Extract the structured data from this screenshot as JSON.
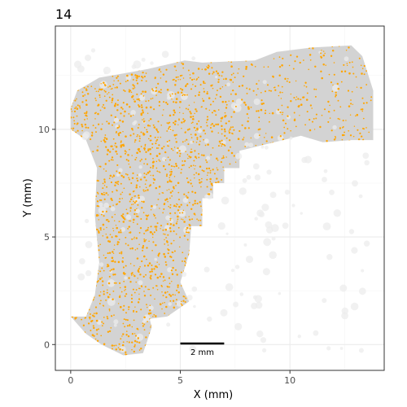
{
  "chart_data": {
    "type": "scatter",
    "title": "14",
    "xlabel": "X (mm)",
    "ylabel": "Y (mm)",
    "xlim": [
      -0.7,
      14.3
    ],
    "ylim": [
      -1.2,
      14.8
    ],
    "xticks": [
      0,
      5,
      10
    ],
    "yticks": [
      0,
      5,
      10
    ],
    "grid": true,
    "legend": "none",
    "colors": {
      "background": "#ffffff",
      "panel_border": "#333333",
      "grid_major": "#ebebeb",
      "grid_minor": "#f5f5f5",
      "tissue": "#d3d3d3",
      "points": "#ffa500",
      "scalebar": "#000000",
      "text": "#333333"
    },
    "scalebar": {
      "label": "2 mm",
      "x_start": 5,
      "x_end": 7,
      "y": 0.05
    },
    "series": [
      {
        "role": "tissue-outline",
        "color": "#d3d3d3",
        "x": [
          0.0,
          0.7,
          1.1,
          1.3,
          1.1,
          1.2,
          0.7,
          0.0,
          0.0,
          0.3,
          1.3,
          2.4,
          3.5,
          5.2,
          6.0,
          8.4,
          9.4,
          11.0,
          12.8,
          13.3,
          13.8,
          13.8,
          12.8,
          11.5,
          10.5,
          7.7,
          7.7,
          7.0,
          7.0,
          6.5,
          6.5,
          6.0,
          6.0,
          5.5,
          5.4,
          5.0,
          5.4,
          4.4,
          3.6,
          3.7,
          3.3,
          2.4,
          1.4,
          0.7,
          0.0
        ],
        "y": [
          1.3,
          1.3,
          2.3,
          3.8,
          6.0,
          8.2,
          9.5,
          10.0,
          11.0,
          11.8,
          12.4,
          12.6,
          12.8,
          13.2,
          13.1,
          13.2,
          13.6,
          13.8,
          13.9,
          13.4,
          11.8,
          9.5,
          9.5,
          9.4,
          9.7,
          9.0,
          8.2,
          8.2,
          7.5,
          7.5,
          6.8,
          6.8,
          5.5,
          5.5,
          4.2,
          2.9,
          2.0,
          1.3,
          1.2,
          0.8,
          -0.4,
          -0.5,
          0.0,
          0.5,
          1.3
        ]
      },
      {
        "role": "spots",
        "color": "#ffa500",
        "approximate_count": 4500,
        "x_range": [
          0.0,
          13.8
        ],
        "y_range": [
          -0.5,
          13.9
        ]
      }
    ]
  }
}
